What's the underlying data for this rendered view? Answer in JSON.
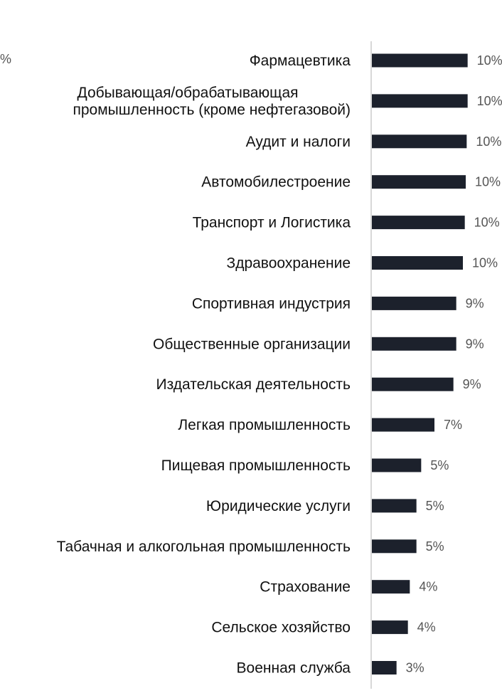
{
  "cutoff_fragment": "%",
  "chart_data": {
    "type": "bar",
    "orientation": "horizontal",
    "title": "",
    "xlabel": "",
    "ylabel": "",
    "categories": [
      [
        "Фармацевтика"
      ],
      [
        "Добывающая/обрабатывающая",
        "промышленность (кроме нефтегазовой)"
      ],
      [
        "Аудит и налоги"
      ],
      [
        "Автомобилестроение"
      ],
      [
        "Транспорт и Логистика"
      ],
      [
        "Здравоохранение"
      ],
      [
        "Спортивная индустрия"
      ],
      [
        "Общественные организации"
      ],
      [
        "Издательская деятельность"
      ],
      [
        "Легкая промышленность"
      ],
      [
        "Пищевая промышленность"
      ],
      [
        "Юридические услуги"
      ],
      [
        "Табачная и алкогольная промышленность"
      ],
      [
        "Страхование"
      ],
      [
        "Сельское хозяйство"
      ],
      [
        "Военная служба"
      ]
    ],
    "values": [
      10.1,
      10.1,
      10.0,
      9.9,
      9.8,
      9.6,
      8.9,
      8.9,
      8.6,
      6.6,
      5.2,
      4.7,
      4.7,
      4.0,
      3.8,
      2.6
    ],
    "value_labels": [
      "10%",
      "10%",
      "10%",
      "10%",
      "10%",
      "10%",
      "9%",
      "9%",
      "9%",
      "7%",
      "5%",
      "5%",
      "5%",
      "4%",
      "4%",
      "3%"
    ],
    "xlim": [
      0,
      15
    ],
    "grid": false,
    "legend": "none",
    "colors": {
      "bar": "#1c212c",
      "axis": "#cccccc",
      "label": "#111111",
      "value": "#555555"
    }
  }
}
